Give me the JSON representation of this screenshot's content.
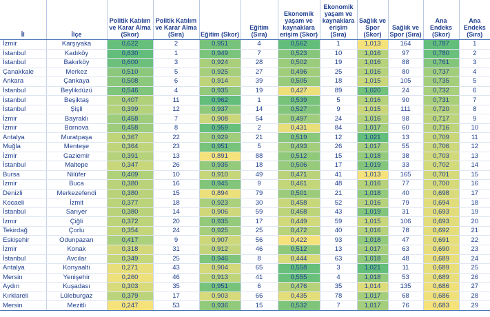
{
  "headers": {
    "il": "İl",
    "ilce": "İlçe",
    "pk_skor": "Politik Katılım ve Karar Alma (Skor)",
    "pk_sira": "Politik Katılım ve Karar Alma (Sıra)",
    "eg_skor": "Eğitim (Skor)",
    "eg_sira": "Eğitim (Sıra)",
    "ek_skor": "Ekonomik yaşam ve kaynaklara erişim (Skor)",
    "ek_sira": "Ekonomik yaşam ve kaynaklara erişim (Sıra)",
    "sg_skor": "Sağlık ve Spor (Skor)",
    "sg_sira": "Sağlık ve Spor (Sıra)",
    "ae_skor": "Ana Endeks (Skor)",
    "ae_sira": "Ana Endeks (Sıra)"
  },
  "colors": {
    "dark_green": "#63be7b",
    "mid_green": "#9fd67e",
    "light_green": "#c6e384",
    "yellow": "#f1eb83",
    "deep_yellow": "#f6e27a"
  },
  "rows": [
    {
      "il": "İzmir",
      "ilce": "Karşıyaka",
      "pk": "0,622",
      "pkr": "2",
      "eg": "0,951",
      "egr": "4",
      "ek": "0,562",
      "ekr": "1",
      "sg": "1,013",
      "sgr": "164",
      "ae": "0,787",
      "aer": "1"
    },
    {
      "il": "İstanbul",
      "ilce": "Kadıköy",
      "pk": "0,630",
      "pkr": "1",
      "eg": "0,949",
      "egr": "7",
      "ek": "0,523",
      "ekr": "10",
      "sg": "1,016",
      "sgr": "97",
      "ae": "0,780",
      "aer": "2"
    },
    {
      "il": "İstanbul",
      "ilce": "Bakırköy",
      "pk": "0,600",
      "pkr": "3",
      "eg": "0,924",
      "egr": "28",
      "ek": "0,502",
      "ekr": "19",
      "sg": "1,016",
      "sgr": "88",
      "ae": "0,761",
      "aer": "3"
    },
    {
      "il": "Çanakkale",
      "ilce": "Merkez",
      "pk": "0,510",
      "pkr": "5",
      "eg": "0,925",
      "egr": "27",
      "ek": "0,496",
      "ekr": "25",
      "sg": "1,016",
      "sgr": "80",
      "ae": "0,737",
      "aer": "4"
    },
    {
      "il": "Ankara",
      "ilce": "Çankaya",
      "pk": "0,508",
      "pkr": "6",
      "eg": "0,914",
      "egr": "39",
      "ek": "0,505",
      "ekr": "18",
      "sg": "1,015",
      "sgr": "105",
      "ae": "0,735",
      "aer": "5"
    },
    {
      "il": "İstanbul",
      "ilce": "Beylikdüzü",
      "pk": "0,546",
      "pkr": "4",
      "eg": "0,935",
      "egr": "19",
      "ek": "0,427",
      "ekr": "89",
      "sg": "1,020",
      "sgr": "24",
      "ae": "0,732",
      "aer": "6"
    },
    {
      "il": "İstanbul",
      "ilce": "Beşiktaş",
      "pk": "0,407",
      "pkr": "11",
      "eg": "0,962",
      "egr": "1",
      "ek": "0,539",
      "ekr": "5",
      "sg": "1,016",
      "sgr": "90",
      "ae": "0,731",
      "aer": "7"
    },
    {
      "il": "İstanbul",
      "ilce": "Şişli",
      "pk": "0,399",
      "pkr": "12",
      "eg": "0,937",
      "egr": "14",
      "ek": "0,527",
      "ekr": "9",
      "sg": "1,015",
      "sgr": "111",
      "ae": "0,720",
      "aer": "8"
    },
    {
      "il": "İzmir",
      "ilce": "Bayraklı",
      "pk": "0,458",
      "pkr": "7",
      "eg": "0,908",
      "egr": "54",
      "ek": "0,497",
      "ekr": "24",
      "sg": "1,016",
      "sgr": "98",
      "ae": "0,717",
      "aer": "9"
    },
    {
      "il": "İzmir",
      "ilce": "Bornova",
      "pk": "0,458",
      "pkr": "8",
      "eg": "0,959",
      "egr": "2",
      "ek": "0,431",
      "ekr": "84",
      "sg": "1,017",
      "sgr": "60",
      "ae": "0,716",
      "aer": "10"
    },
    {
      "il": "Antalya",
      "ilce": "Muratpaşa",
      "pk": "0,367",
      "pkr": "22",
      "eg": "0,929",
      "egr": "21",
      "ek": "0,519",
      "ekr": "12",
      "sg": "1,021",
      "sgr": "13",
      "ae": "0,709",
      "aer": "11"
    },
    {
      "il": "Muğla",
      "ilce": "Menteşe",
      "pk": "0,364",
      "pkr": "23",
      "eg": "0,951",
      "egr": "5",
      "ek": "0,493",
      "ekr": "26",
      "sg": "1,017",
      "sgr": "55",
      "ae": "0,706",
      "aer": "12"
    },
    {
      "il": "İzmir",
      "ilce": "Gaziemir",
      "pk": "0,391",
      "pkr": "13",
      "eg": "0,891",
      "egr": "88",
      "ek": "0,512",
      "ekr": "15",
      "sg": "1,018",
      "sgr": "38",
      "ae": "0,703",
      "aer": "13"
    },
    {
      "il": "İstanbul",
      "ilce": "Maltepe",
      "pk": "0,347",
      "pkr": "26",
      "eg": "0,935",
      "egr": "18",
      "ek": "0,506",
      "ekr": "17",
      "sg": "1,019",
      "sgr": "33",
      "ae": "0,702",
      "aer": "14"
    },
    {
      "il": "Bursa",
      "ilce": "Nilüfer",
      "pk": "0,409",
      "pkr": "10",
      "eg": "0,910",
      "egr": "49",
      "ek": "0,471",
      "ekr": "41",
      "sg": "1,013",
      "sgr": "165",
      "ae": "0,701",
      "aer": "15"
    },
    {
      "il": "İzmir",
      "ilce": "Buca",
      "pk": "0,380",
      "pkr": "16",
      "eg": "0,945",
      "egr": "9",
      "ek": "0,461",
      "ekr": "48",
      "sg": "1,016",
      "sgr": "77",
      "ae": "0,700",
      "aer": "16"
    },
    {
      "il": "Denizli",
      "ilce": "Merkezefendi",
      "pk": "0,380",
      "pkr": "15",
      "eg": "0,894",
      "egr": "79",
      "ek": "0,501",
      "ekr": "21",
      "sg": "1,018",
      "sgr": "40",
      "ae": "0,698",
      "aer": "17"
    },
    {
      "il": "Kocaeli",
      "ilce": "İzmit",
      "pk": "0,377",
      "pkr": "18",
      "eg": "0,923",
      "egr": "30",
      "ek": "0,458",
      "ekr": "52",
      "sg": "1,016",
      "sgr": "79",
      "ae": "0,694",
      "aer": "18"
    },
    {
      "il": "İstanbul",
      "ilce": "Sarıyer",
      "pk": "0,380",
      "pkr": "14",
      "eg": "0,906",
      "egr": "59",
      "ek": "0,468",
      "ekr": "43",
      "sg": "1,019",
      "sgr": "31",
      "ae": "0,693",
      "aer": "19"
    },
    {
      "il": "İzmir",
      "ilce": "Çiğli",
      "pk": "0,372",
      "pkr": "20",
      "eg": "0,935",
      "egr": "17",
      "ek": "0,449",
      "ekr": "59",
      "sg": "1,015",
      "sgr": "106",
      "ae": "0,693",
      "aer": "20"
    },
    {
      "il": "Tekirdağ",
      "ilce": "Çorlu",
      "pk": "0,354",
      "pkr": "24",
      "eg": "0,925",
      "egr": "25",
      "ek": "0,472",
      "ekr": "40",
      "sg": "1,016",
      "sgr": "78",
      "ae": "0,692",
      "aer": "21"
    },
    {
      "il": "Eskişehir",
      "ilce": "Odunpazarı",
      "pk": "0,417",
      "pkr": "9",
      "eg": "0,907",
      "egr": "56",
      "ek": "0,422",
      "ekr": "93",
      "sg": "1,018",
      "sgr": "47",
      "ae": "0,691",
      "aer": "22"
    },
    {
      "il": "İzmir",
      "ilce": "Konak",
      "pk": "0,318",
      "pkr": "31",
      "eg": "0,912",
      "egr": "46",
      "ek": "0,512",
      "ekr": "13",
      "sg": "1,017",
      "sgr": "63",
      "ae": "0,690",
      "aer": "23"
    },
    {
      "il": "İstanbul",
      "ilce": "Avcılar",
      "pk": "0,349",
      "pkr": "25",
      "eg": "0,946",
      "egr": "8",
      "ek": "0,444",
      "ekr": "63",
      "sg": "1,018",
      "sgr": "48",
      "ae": "0,689",
      "aer": "24"
    },
    {
      "il": "Antalya",
      "ilce": "Konyaaltı",
      "pk": "0,271",
      "pkr": "43",
      "eg": "0,904",
      "egr": "65",
      "ek": "0,558",
      "ekr": "3",
      "sg": "1,021",
      "sgr": "11",
      "ae": "0,689",
      "aer": "25"
    },
    {
      "il": "Mersin",
      "ilce": "Yenişehir",
      "pk": "0,260",
      "pkr": "46",
      "eg": "0,913",
      "egr": "41",
      "ek": "0,555",
      "ekr": "4",
      "sg": "1,018",
      "sgr": "53",
      "ae": "0,689",
      "aer": "26"
    },
    {
      "il": "Aydın",
      "ilce": "Kuşadası",
      "pk": "0,303",
      "pkr": "35",
      "eg": "0,951",
      "egr": "6",
      "ek": "0,476",
      "ekr": "35",
      "sg": "1,014",
      "sgr": "135",
      "ae": "0,686",
      "aer": "27"
    },
    {
      "il": "Kırklareli",
      "ilce": "Lüleburgaz",
      "pk": "0,379",
      "pkr": "17",
      "eg": "0,903",
      "egr": "66",
      "ek": "0,435",
      "ekr": "78",
      "sg": "1,017",
      "sgr": "68",
      "ae": "0,686",
      "aer": "28"
    },
    {
      "il": "Mersin",
      "ilce": "Mezitli",
      "pk": "0,247",
      "pkr": "53",
      "eg": "0,936",
      "egr": "15",
      "ek": "0,532",
      "ekr": "7",
      "sg": "1,017",
      "sgr": "76",
      "ae": "0,683",
      "aer": "29"
    }
  ]
}
